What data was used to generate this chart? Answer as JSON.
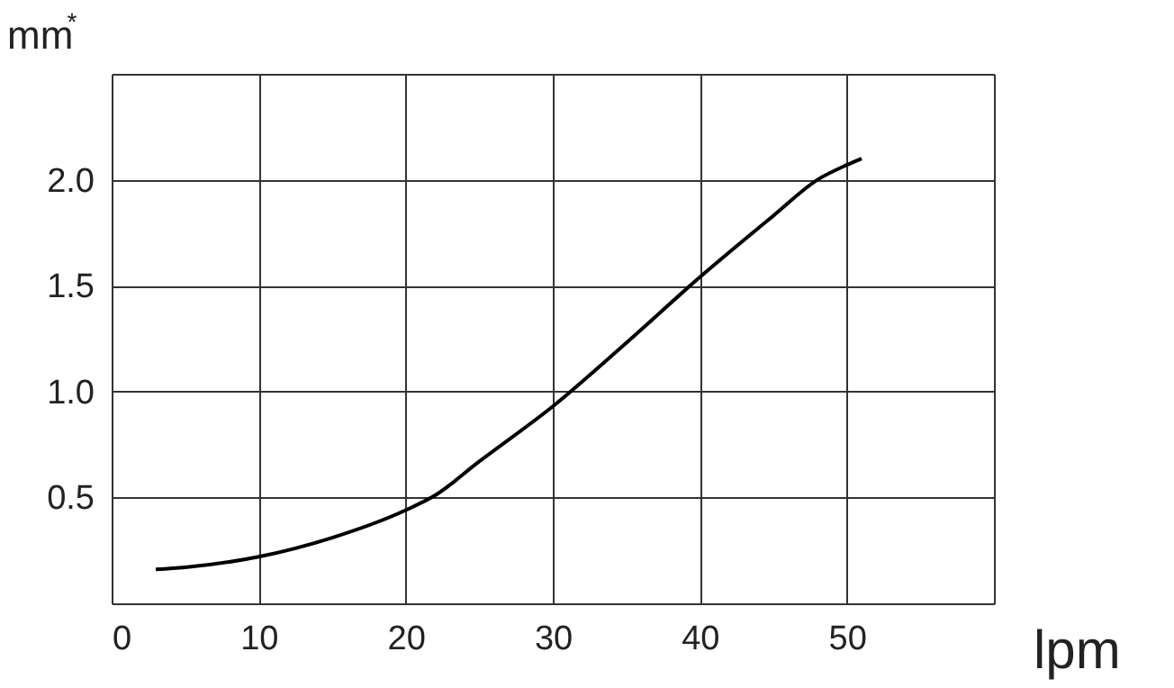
{
  "chart_data": {
    "type": "line",
    "xlabel": "lpm",
    "ylabel": "mm$^{*}$",
    "x": [
      3,
      5,
      10,
      15,
      20,
      22,
      25,
      30,
      35,
      40,
      45,
      48,
      50,
      51
    ],
    "series": [
      {
        "color": "#000000",
        "values": [
          0.16,
          0.17,
          0.22,
          0.31,
          0.44,
          0.51,
          0.67,
          0.93,
          1.23,
          1.54,
          1.83,
          2.0,
          2.07,
          2.1
        ]
      }
    ],
    "xlim": [
      0,
      60
    ],
    "xticks": [
      0,
      10,
      20,
      30,
      40,
      50,
      {
        "value": 60,
        "label": null
      }
    ],
    "ylim": [
      0,
      2.5
    ],
    "yticks": [
      {
        "value": 0,
        "label": null
      },
      0.5,
      {
        "value": 1,
        "label": "1.0"
      },
      1.5,
      {
        "value": 2,
        "label": "2.0"
      },
      {
        "value": 2.5,
        "label": null
      }
    ],
    "grid": true,
    "legend": false,
    "marker": "none",
    "line_style": "solid"
  }
}
